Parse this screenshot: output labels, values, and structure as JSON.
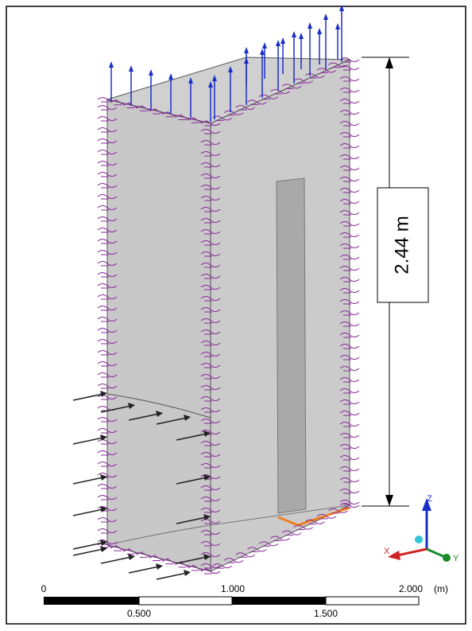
{
  "dimension": {
    "label": "2.44 m"
  },
  "scale_bar": {
    "top_labels": [
      "0",
      "1.000",
      "2.000"
    ],
    "unit": "(m)",
    "bottom_labels": [
      "0.500",
      "1.500"
    ]
  },
  "triad": {
    "z": "Z",
    "x": "X",
    "y": "Y"
  }
}
